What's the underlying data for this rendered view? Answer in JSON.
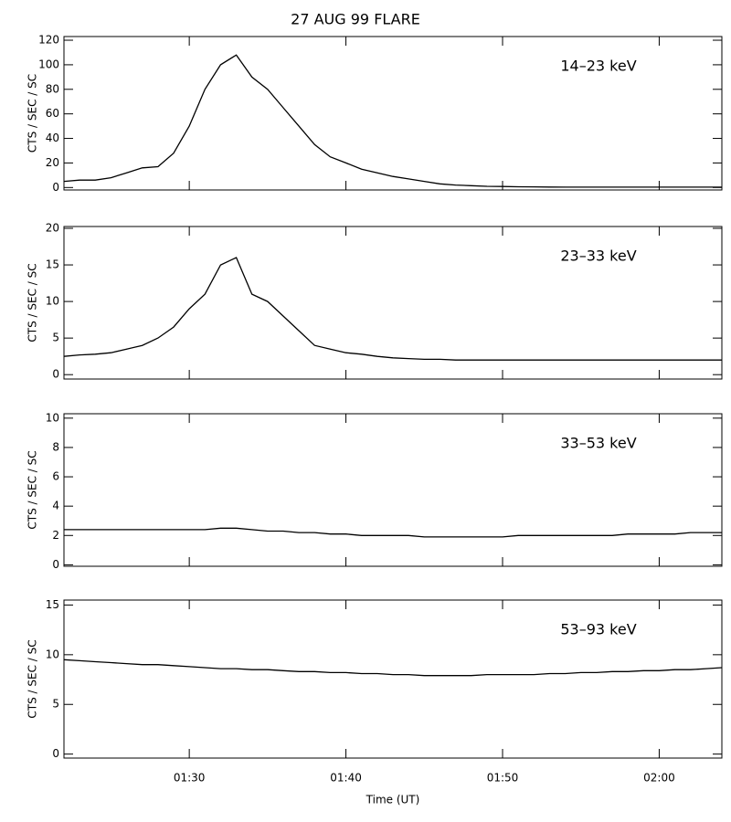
{
  "chart_data": [
    {
      "type": "line",
      "title": "27 AUG 99 FLARE",
      "annotation": "14–23 keV",
      "ylabel": "CTS / SEC / SC",
      "x": [
        "01:22",
        "01:23",
        "01:24",
        "01:25",
        "01:26",
        "01:27",
        "01:28",
        "01:29",
        "01:30",
        "01:31",
        "01:32",
        "01:33",
        "01:34",
        "01:35",
        "01:36",
        "01:37",
        "01:38",
        "01:39",
        "01:40",
        "01:41",
        "01:42",
        "01:43",
        "01:44",
        "01:45",
        "01:46",
        "01:47",
        "01:48",
        "01:49",
        "01:50",
        "01:51",
        "01:52",
        "01:53",
        "01:54",
        "01:55",
        "01:56",
        "01:57",
        "01:58",
        "01:59",
        "02:00",
        "02:01",
        "02:02",
        "02:03",
        "02:04"
      ],
      "series": [
        {
          "color": "#000000",
          "values": [
            5,
            6,
            6,
            8,
            12,
            16,
            17,
            28,
            50,
            80,
            100,
            108,
            90,
            80,
            65,
            50,
            35,
            25,
            20,
            15,
            12,
            9,
            7,
            5,
            3,
            2,
            1.5,
            1,
            0.8,
            0.6,
            0.5,
            0.4,
            0.3,
            0.3,
            0.3,
            0.3,
            0.3,
            0.3,
            0.3,
            0.3,
            0.3,
            0.3,
            0.3
          ]
        }
      ],
      "xlim": [
        "01:22",
        "02:04"
      ],
      "xticks": [
        "01:30",
        "01:40",
        "01:50",
        "02:00"
      ],
      "ylim": [
        -2,
        123
      ],
      "yticks": [
        0,
        20,
        40,
        60,
        80,
        100,
        120
      ]
    },
    {
      "type": "line",
      "annotation": "23–33 keV",
      "ylabel": "CTS / SEC / SC",
      "x": [
        "01:22",
        "01:23",
        "01:24",
        "01:25",
        "01:26",
        "01:27",
        "01:28",
        "01:29",
        "01:30",
        "01:31",
        "01:32",
        "01:33",
        "01:34",
        "01:35",
        "01:36",
        "01:37",
        "01:38",
        "01:39",
        "01:40",
        "01:41",
        "01:42",
        "01:43",
        "01:44",
        "01:45",
        "01:46",
        "01:47",
        "01:48",
        "01:49",
        "01:50",
        "01:51",
        "01:52",
        "01:53",
        "01:54",
        "01:55",
        "01:56",
        "01:57",
        "01:58",
        "01:59",
        "02:00",
        "02:01",
        "02:02",
        "02:03",
        "02:04"
      ],
      "series": [
        {
          "color": "#000000",
          "values": [
            2.5,
            2.7,
            2.8,
            3,
            3.5,
            4,
            5,
            6.5,
            9,
            11,
            15,
            16,
            11,
            10,
            8,
            6,
            4,
            3.5,
            3,
            2.8,
            2.5,
            2.3,
            2.2,
            2.1,
            2.1,
            2.0,
            2.0,
            2.0,
            2.0,
            2.0,
            2.0,
            2.0,
            2.0,
            2.0,
            2.0,
            2.0,
            2.0,
            2.0,
            2.0,
            2.0,
            2.0,
            2.0,
            2.0
          ]
        }
      ],
      "xlim": [
        "01:22",
        "02:04"
      ],
      "xticks": [
        "01:30",
        "01:40",
        "01:50",
        "02:00"
      ],
      "ylim": [
        -0.6,
        20.25
      ],
      "yticks": [
        0,
        5,
        10,
        15,
        20
      ]
    },
    {
      "type": "line",
      "annotation": "33–53 keV",
      "ylabel": "CTS / SEC / SC",
      "x": [
        "01:22",
        "01:23",
        "01:24",
        "01:25",
        "01:26",
        "01:27",
        "01:28",
        "01:29",
        "01:30",
        "01:31",
        "01:32",
        "01:33",
        "01:34",
        "01:35",
        "01:36",
        "01:37",
        "01:38",
        "01:39",
        "01:40",
        "01:41",
        "01:42",
        "01:43",
        "01:44",
        "01:45",
        "01:46",
        "01:47",
        "01:48",
        "01:49",
        "01:50",
        "01:51",
        "01:52",
        "01:53",
        "01:54",
        "01:55",
        "01:56",
        "01:57",
        "01:58",
        "01:59",
        "02:00",
        "02:01",
        "02:02",
        "02:03",
        "02:04"
      ],
      "series": [
        {
          "color": "#000000",
          "values": [
            2.4,
            2.4,
            2.4,
            2.4,
            2.4,
            2.4,
            2.4,
            2.4,
            2.4,
            2.4,
            2.5,
            2.5,
            2.4,
            2.3,
            2.3,
            2.2,
            2.2,
            2.1,
            2.1,
            2.0,
            2.0,
            2.0,
            2.0,
            1.9,
            1.9,
            1.9,
            1.9,
            1.9,
            1.9,
            2.0,
            2.0,
            2.0,
            2.0,
            2.0,
            2.0,
            2.0,
            2.1,
            2.1,
            2.1,
            2.1,
            2.2,
            2.2,
            2.2
          ]
        }
      ],
      "xlim": [
        "01:22",
        "02:04"
      ],
      "xticks": [
        "01:30",
        "01:40",
        "01:50",
        "02:00"
      ],
      "ylim": [
        -0.1,
        10.3
      ],
      "yticks": [
        0,
        2,
        4,
        6,
        8,
        10
      ]
    },
    {
      "type": "line",
      "annotation": "53–93 keV",
      "ylabel": "CTS / SEC / SC",
      "xlabel": "Time (UT)",
      "x": [
        "01:22",
        "01:23",
        "01:24",
        "01:25",
        "01:26",
        "01:27",
        "01:28",
        "01:29",
        "01:30",
        "01:31",
        "01:32",
        "01:33",
        "01:34",
        "01:35",
        "01:36",
        "01:37",
        "01:38",
        "01:39",
        "01:40",
        "01:41",
        "01:42",
        "01:43",
        "01:44",
        "01:45",
        "01:46",
        "01:47",
        "01:48",
        "01:49",
        "01:50",
        "01:51",
        "01:52",
        "01:53",
        "01:54",
        "01:55",
        "01:56",
        "01:57",
        "01:58",
        "01:59",
        "02:00",
        "02:01",
        "02:02",
        "02:03",
        "02:04"
      ],
      "series": [
        {
          "color": "#000000",
          "values": [
            9.5,
            9.4,
            9.3,
            9.2,
            9.1,
            9.0,
            9.0,
            8.9,
            8.8,
            8.7,
            8.6,
            8.6,
            8.5,
            8.5,
            8.4,
            8.3,
            8.3,
            8.2,
            8.2,
            8.1,
            8.1,
            8.0,
            8.0,
            7.9,
            7.9,
            7.9,
            7.9,
            8.0,
            8.0,
            8.0,
            8.0,
            8.1,
            8.1,
            8.2,
            8.2,
            8.3,
            8.3,
            8.4,
            8.4,
            8.5,
            8.5,
            8.6,
            8.7
          ]
        }
      ],
      "xlim": [
        "01:22",
        "02:04"
      ],
      "xticks": [
        "01:30",
        "01:40",
        "01:50",
        "02:00"
      ],
      "ylim": [
        -0.4,
        15.5
      ],
      "yticks": [
        0,
        5,
        10,
        15
      ]
    }
  ]
}
